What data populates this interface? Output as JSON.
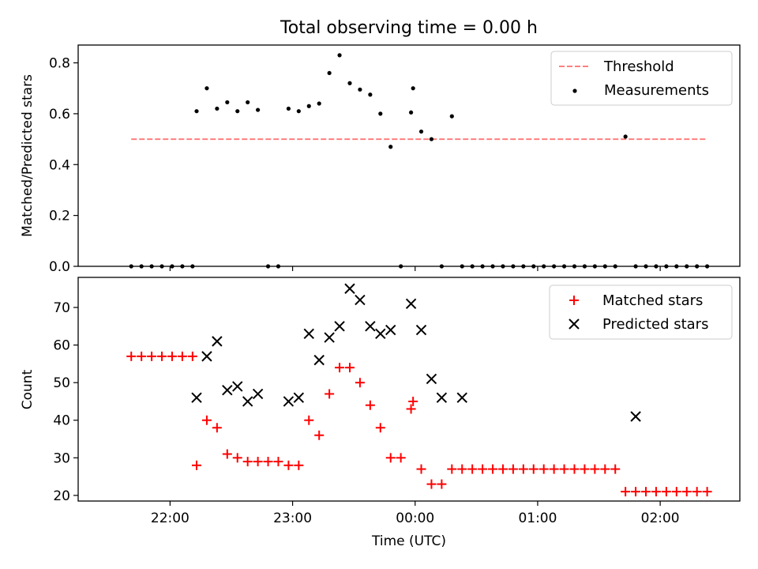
{
  "title": "Total observing time = 0.00 h",
  "colors": {
    "threshold": "#ff7f7f",
    "measurements": "#000000",
    "matched": "#ff0000",
    "predicted": "#000000"
  },
  "chart_data": [
    {
      "type": "scatter",
      "ylabel": "Matched/Predicted stars",
      "xlim": [
        21.25,
        2.65
      ],
      "ylim": [
        0,
        0.87
      ],
      "yticks": [
        "0.0",
        "0.2",
        "0.4",
        "0.6",
        "0.8"
      ],
      "ytick_values": [
        0,
        0.2,
        0.4,
        0.6,
        0.8
      ],
      "legend": {
        "position": "top-right",
        "entries": [
          "Threshold",
          "Measurements"
        ]
      },
      "threshold": {
        "name": "Threshold",
        "value": 0.5,
        "x": [
          "21:41",
          "02:23"
        ]
      },
      "measurements": {
        "name": "Measurements",
        "x": [
          "21:41",
          "21:46",
          "21:51",
          "21:56",
          "22:01",
          "22:06",
          "22:11",
          "22:13",
          "22:18",
          "22:23",
          "22:28",
          "22:33",
          "22:38",
          "22:43",
          "22:48",
          "22:53",
          "22:58",
          "23:03",
          "23:08",
          "23:13",
          "23:18",
          "23:23",
          "23:28",
          "23:33",
          "23:38",
          "23:43",
          "23:48",
          "23:53",
          "23:58",
          "23:59",
          "00:03",
          "00:08",
          "00:13",
          "00:18",
          "00:23",
          "00:28",
          "00:33",
          "00:38",
          "00:43",
          "00:48",
          "00:53",
          "00:58",
          "01:03",
          "01:08",
          "01:13",
          "01:18",
          "01:23",
          "01:28",
          "01:33",
          "01:38",
          "01:43",
          "01:48",
          "01:53",
          "01:58",
          "02:03",
          "02:08",
          "02:13",
          "02:18",
          "02:23"
        ],
        "y": [
          0,
          0,
          0,
          0,
          0,
          0,
          0,
          0.61,
          0.7,
          0.62,
          0.645,
          0.61,
          0.645,
          0.615,
          0,
          0,
          0.62,
          0.61,
          0.63,
          0.64,
          0.76,
          0.83,
          0.72,
          0.695,
          0.675,
          0.6,
          0.47,
          0,
          0.605,
          0.7,
          0.53,
          0.5,
          0,
          0.59,
          0,
          0,
          0,
          0,
          0,
          0,
          0,
          0,
          0,
          0,
          0,
          0,
          0,
          0,
          0,
          0,
          0.51,
          0,
          0,
          0,
          0,
          0,
          0,
          0,
          0
        ]
      }
    },
    {
      "type": "scatter",
      "xlabel": "Time (UTC)",
      "ylabel": "Count",
      "xlim": [
        21.25,
        2.65
      ],
      "ylim": [
        18.5,
        78
      ],
      "yticks": [
        "20",
        "30",
        "40",
        "50",
        "60",
        "70"
      ],
      "ytick_values": [
        20,
        30,
        40,
        50,
        60,
        70
      ],
      "xticks": [
        "22:00",
        "23:00",
        "00:00",
        "01:00",
        "02:00"
      ],
      "legend": {
        "position": "top-right",
        "entries": [
          "Matched stars",
          "Predicted stars"
        ]
      },
      "matched": {
        "name": "Matched stars",
        "x": [
          "21:41",
          "21:46",
          "21:51",
          "21:56",
          "22:01",
          "22:06",
          "22:11",
          "22:13",
          "22:18",
          "22:23",
          "22:28",
          "22:33",
          "22:38",
          "22:43",
          "22:48",
          "22:53",
          "22:58",
          "23:03",
          "23:08",
          "23:13",
          "23:18",
          "23:23",
          "23:28",
          "23:33",
          "23:38",
          "23:43",
          "23:48",
          "23:53",
          "23:58",
          "23:59",
          "00:03",
          "00:08",
          "00:13",
          "00:18",
          "00:23",
          "00:28",
          "00:33",
          "00:38",
          "00:43",
          "00:48",
          "00:53",
          "00:58",
          "01:03",
          "01:08",
          "01:13",
          "01:18",
          "01:23",
          "01:28",
          "01:33",
          "01:38",
          "01:43",
          "01:48",
          "01:53",
          "01:58",
          "02:03",
          "02:08",
          "02:13",
          "02:18",
          "02:23"
        ],
        "y": [
          57,
          57,
          57,
          57,
          57,
          57,
          57,
          28,
          40,
          38,
          31,
          30,
          29,
          29,
          29,
          29,
          28,
          28,
          40,
          36,
          47,
          54,
          54,
          50,
          44,
          38,
          30,
          30,
          43,
          45,
          27,
          23,
          23,
          27,
          27,
          27,
          27,
          27,
          27,
          27,
          27,
          27,
          27,
          27,
          27,
          27,
          27,
          27,
          27,
          27,
          21,
          21,
          21,
          21,
          21,
          21,
          21,
          21,
          21
        ]
      },
      "predicted": {
        "name": "Predicted stars",
        "x": [
          "22:13",
          "22:18",
          "22:23",
          "22:28",
          "22:33",
          "22:38",
          "22:43",
          "22:58",
          "23:03",
          "23:08",
          "23:13",
          "23:18",
          "23:23",
          "23:28",
          "23:33",
          "23:38",
          "23:43",
          "23:48",
          "23:58",
          "00:03",
          "00:08",
          "00:13",
          "00:23",
          "01:48"
        ],
        "y": [
          46,
          57,
          61,
          48,
          49,
          45,
          47,
          45,
          46,
          63,
          56,
          62,
          65,
          75,
          72,
          65,
          63,
          64,
          71,
          64,
          51,
          46,
          46,
          41
        ]
      }
    }
  ]
}
